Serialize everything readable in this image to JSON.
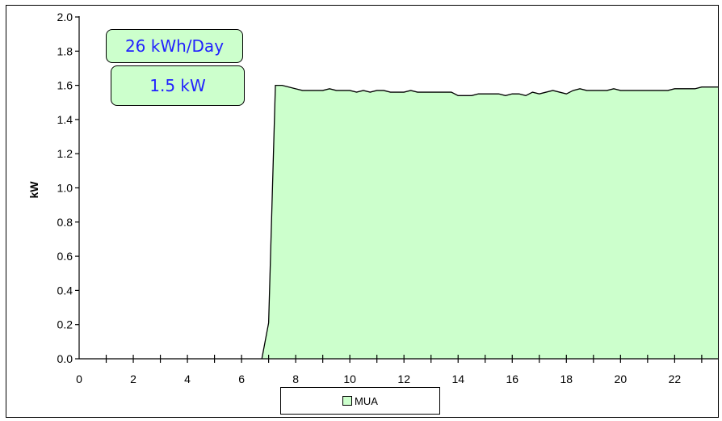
{
  "chart_data": {
    "type": "area",
    "title": "",
    "xlabel": "",
    "ylabel": "kW",
    "xlim": [
      0,
      23.6
    ],
    "ylim": [
      0,
      2.0
    ],
    "grid": false,
    "x_ticks": [
      "0",
      "2",
      "4",
      "6",
      "8",
      "10",
      "12",
      "14",
      "16",
      "18",
      "20",
      "22"
    ],
    "y_ticks": [
      "0.0",
      "0.2",
      "0.4",
      "0.6",
      "0.8",
      "1.0",
      "1.2",
      "1.4",
      "1.6",
      "1.8",
      "2.0"
    ],
    "legend": {
      "position": "bottom",
      "entries": [
        "MUA"
      ]
    },
    "series": [
      {
        "name": "MUA",
        "color": "#ccffcc",
        "line_color": "#000000",
        "points": [
          [
            0,
            0
          ],
          [
            6.75,
            0
          ],
          [
            7.0,
            0.21
          ],
          [
            7.25,
            1.6
          ],
          [
            7.5,
            1.6
          ],
          [
            7.75,
            1.59
          ],
          [
            8.0,
            1.58
          ],
          [
            8.25,
            1.57
          ],
          [
            8.5,
            1.57
          ],
          [
            8.75,
            1.57
          ],
          [
            9.0,
            1.57
          ],
          [
            9.25,
            1.58
          ],
          [
            9.5,
            1.57
          ],
          [
            9.75,
            1.57
          ],
          [
            10.0,
            1.57
          ],
          [
            10.25,
            1.56
          ],
          [
            10.5,
            1.57
          ],
          [
            10.75,
            1.56
          ],
          [
            11.0,
            1.57
          ],
          [
            11.25,
            1.57
          ],
          [
            11.5,
            1.56
          ],
          [
            11.75,
            1.56
          ],
          [
            12.0,
            1.56
          ],
          [
            12.25,
            1.57
          ],
          [
            12.5,
            1.56
          ],
          [
            12.75,
            1.56
          ],
          [
            13.0,
            1.56
          ],
          [
            13.25,
            1.56
          ],
          [
            13.5,
            1.56
          ],
          [
            13.75,
            1.56
          ],
          [
            14.0,
            1.54
          ],
          [
            14.25,
            1.54
          ],
          [
            14.5,
            1.54
          ],
          [
            14.75,
            1.55
          ],
          [
            15.0,
            1.55
          ],
          [
            15.25,
            1.55
          ],
          [
            15.5,
            1.55
          ],
          [
            15.75,
            1.54
          ],
          [
            16.0,
            1.55
          ],
          [
            16.25,
            1.55
          ],
          [
            16.5,
            1.54
          ],
          [
            16.75,
            1.56
          ],
          [
            17.0,
            1.55
          ],
          [
            17.25,
            1.56
          ],
          [
            17.5,
            1.57
          ],
          [
            17.75,
            1.56
          ],
          [
            18.0,
            1.55
          ],
          [
            18.25,
            1.57
          ],
          [
            18.5,
            1.58
          ],
          [
            18.75,
            1.57
          ],
          [
            19.0,
            1.57
          ],
          [
            19.25,
            1.57
          ],
          [
            19.5,
            1.57
          ],
          [
            19.75,
            1.58
          ],
          [
            20.0,
            1.57
          ],
          [
            20.25,
            1.57
          ],
          [
            20.5,
            1.57
          ],
          [
            20.75,
            1.57
          ],
          [
            21.0,
            1.57
          ],
          [
            21.25,
            1.57
          ],
          [
            21.5,
            1.57
          ],
          [
            21.75,
            1.57
          ],
          [
            22.0,
            1.58
          ],
          [
            22.25,
            1.58
          ],
          [
            22.5,
            1.58
          ],
          [
            22.75,
            1.58
          ],
          [
            23.0,
            1.59
          ],
          [
            23.25,
            1.59
          ],
          [
            23.6,
            1.59
          ]
        ]
      }
    ],
    "annotations": [
      "26 kWh/Day",
      "1.5 kW"
    ]
  }
}
